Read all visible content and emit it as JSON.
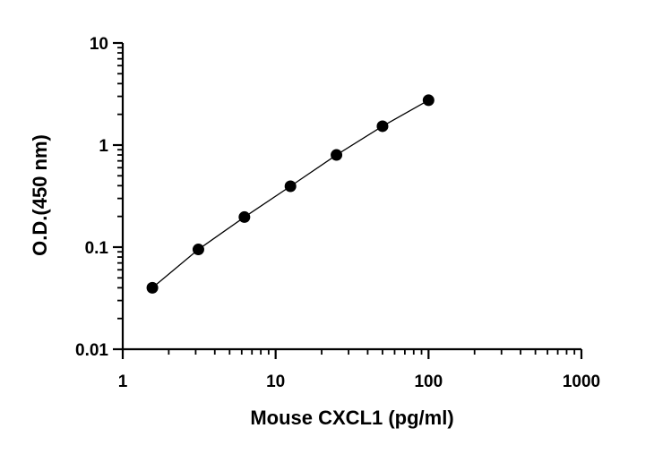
{
  "chart_data": {
    "type": "scatter",
    "xlabel": "Mouse CXCL1 (pg/ml)",
    "ylabel": "O.D.(450 nm)",
    "x_scale": "log",
    "y_scale": "log",
    "xlim": [
      1,
      1000
    ],
    "ylim": [
      0.01,
      10
    ],
    "x_ticks": [
      "1",
      "10",
      "100",
      "1000"
    ],
    "y_ticks": [
      "0.01",
      "0.1",
      "1",
      "10"
    ],
    "grid": false,
    "legend": "none",
    "series": [
      {
        "x": [
          1.5625,
          3.125,
          6.25,
          12.5,
          25,
          50,
          100
        ],
        "y": [
          0.04,
          0.095,
          0.197,
          0.395,
          0.8,
          1.53,
          2.75
        ],
        "marker": "filled-circle",
        "line": "connected",
        "color": "#000000"
      }
    ]
  }
}
